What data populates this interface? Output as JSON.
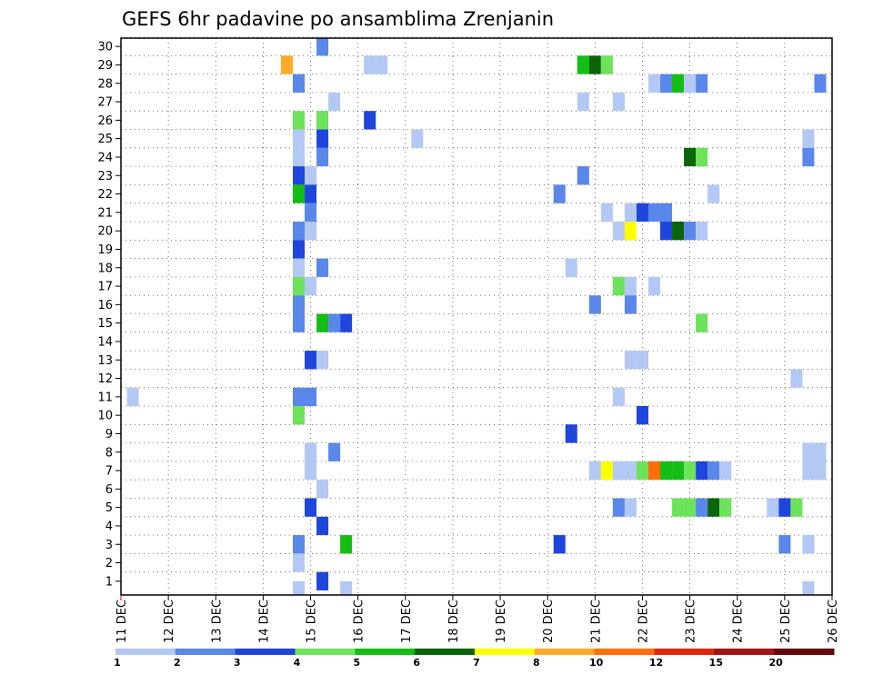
{
  "chart_data": {
    "type": "heatmap",
    "title": "GEFS 6hr padavine po ansamblima Zrenjanin",
    "xlabel": "",
    "ylabel": "",
    "x_ticks": [
      "11 DEC",
      "12 DEC",
      "13 DEC",
      "14 DEC",
      "15 DEC",
      "16 DEC",
      "17 DEC",
      "18 DEC",
      "19 DEC",
      "20 DEC",
      "21 DEC",
      "22 DEC",
      "23 DEC",
      "24 DEC",
      "25 DEC",
      "26 DEC"
    ],
    "y_ticks": [
      1,
      2,
      3,
      4,
      5,
      6,
      7,
      8,
      9,
      10,
      11,
      12,
      13,
      14,
      15,
      16,
      17,
      18,
      19,
      20,
      21,
      22,
      23,
      24,
      25,
      26,
      27,
      28,
      29,
      30
    ],
    "xlim": [
      0,
      15
    ],
    "ylim": [
      0.3,
      30
    ],
    "step": 0.25,
    "grid": true,
    "colorbar": {
      "colors": [
        "#b4c8f5",
        "#5a87ea",
        "#1e46dc",
        "#6ce35a",
        "#14be14",
        "#0a640a",
        "#ffff00",
        "#ffaa28",
        "#ff6e0a",
        "#dc280a",
        "#a01414",
        "#640a0a"
      ],
      "labels": [
        "1",
        "2",
        "3",
        "4",
        "5",
        "6",
        "7",
        "8",
        "10",
        "12",
        "15",
        "20"
      ]
    },
    "cells": [
      [
        0.25,
        11,
        0
      ],
      [
        3.5,
        29,
        7
      ],
      [
        3.75,
        10,
        0
      ],
      [
        3.75,
        10,
        3
      ],
      [
        3.75,
        28,
        1
      ],
      [
        3.75,
        26,
        3
      ],
      [
        3.75,
        25,
        0
      ],
      [
        3.75,
        24,
        0
      ],
      [
        3.75,
        23,
        2
      ],
      [
        3.75,
        22,
        4
      ],
      [
        3.75,
        20,
        1
      ],
      [
        3.75,
        19,
        2
      ],
      [
        3.75,
        18,
        0
      ],
      [
        3.75,
        17,
        3
      ],
      [
        3.75,
        16,
        1
      ],
      [
        3.75,
        15,
        1
      ],
      [
        3.75,
        11,
        1
      ],
      [
        3.75,
        10,
        3
      ],
      [
        3.75,
        3,
        1
      ],
      [
        3.75,
        2,
        0
      ],
      [
        3.75,
        0.5,
        0
      ],
      [
        4.0,
        23,
        0
      ],
      [
        4.0,
        22,
        2
      ],
      [
        4.0,
        21,
        1
      ],
      [
        4.0,
        20,
        0
      ],
      [
        4.0,
        17,
        0
      ],
      [
        4.0,
        13,
        2
      ],
      [
        4.0,
        11,
        1
      ],
      [
        4.0,
        8,
        0
      ],
      [
        4.0,
        7,
        0
      ],
      [
        4.0,
        5,
        2
      ],
      [
        4.25,
        30,
        1
      ],
      [
        4.25,
        26,
        3
      ],
      [
        4.25,
        25,
        2
      ],
      [
        4.25,
        24,
        1
      ],
      [
        4.25,
        18,
        1
      ],
      [
        4.25,
        15,
        4
      ],
      [
        4.25,
        13,
        0
      ],
      [
        4.25,
        6,
        0
      ],
      [
        4.25,
        4,
        2
      ],
      [
        4.25,
        1,
        2
      ],
      [
        4.5,
        27,
        0
      ],
      [
        4.5,
        15,
        1
      ],
      [
        4.5,
        8,
        1
      ],
      [
        4.75,
        15,
        2
      ],
      [
        4.75,
        3,
        4
      ],
      [
        4.75,
        0.5,
        0
      ],
      [
        5.25,
        29,
        0
      ],
      [
        5.5,
        29,
        0
      ],
      [
        5.25,
        26,
        2
      ],
      [
        6.25,
        25,
        0
      ],
      [
        9.25,
        22,
        1
      ],
      [
        9.25,
        3,
        2
      ],
      [
        9.5,
        18,
        0
      ],
      [
        9.5,
        9,
        2
      ],
      [
        9.75,
        29,
        4
      ],
      [
        9.75,
        27,
        0
      ],
      [
        9.75,
        23,
        1
      ],
      [
        10.0,
        29,
        5
      ],
      [
        10.0,
        16,
        1
      ],
      [
        10.0,
        7,
        0
      ],
      [
        10.25,
        29,
        3
      ],
      [
        10.25,
        21,
        0
      ],
      [
        10.25,
        7,
        6
      ],
      [
        10.5,
        27,
        0
      ],
      [
        10.5,
        20,
        0
      ],
      [
        10.5,
        17,
        3
      ],
      [
        10.5,
        11,
        0
      ],
      [
        10.5,
        7,
        0
      ],
      [
        10.5,
        5,
        1
      ],
      [
        10.75,
        21,
        0
      ],
      [
        10.75,
        20,
        6
      ],
      [
        10.75,
        17,
        0
      ],
      [
        10.75,
        16,
        1
      ],
      [
        10.75,
        13,
        0
      ],
      [
        10.75,
        7,
        0
      ],
      [
        10.75,
        5,
        0
      ],
      [
        11.0,
        21,
        2
      ],
      [
        11.0,
        13,
        0
      ],
      [
        11.0,
        10,
        2
      ],
      [
        11.0,
        7,
        3
      ],
      [
        11.25,
        28,
        0
      ],
      [
        11.25,
        21,
        1
      ],
      [
        11.25,
        17,
        0
      ],
      [
        11.25,
        7,
        8
      ],
      [
        11.5,
        28,
        1
      ],
      [
        11.5,
        21,
        1
      ],
      [
        11.5,
        20,
        2
      ],
      [
        11.5,
        7,
        4
      ],
      [
        11.75,
        28,
        4
      ],
      [
        11.75,
        20,
        5
      ],
      [
        11.75,
        7,
        4
      ],
      [
        11.75,
        5,
        3
      ],
      [
        12.0,
        28,
        0
      ],
      [
        12.0,
        24,
        5
      ],
      [
        12.0,
        20,
        1
      ],
      [
        12.0,
        7,
        3
      ],
      [
        12.0,
        5,
        3
      ],
      [
        12.25,
        28,
        1
      ],
      [
        12.25,
        24,
        3
      ],
      [
        12.25,
        20,
        0
      ],
      [
        12.25,
        15,
        3
      ],
      [
        12.25,
        7,
        2
      ],
      [
        12.25,
        5,
        1
      ],
      [
        12.5,
        22,
        0
      ],
      [
        12.5,
        7,
        1
      ],
      [
        12.5,
        5,
        5
      ],
      [
        12.75,
        7,
        0
      ],
      [
        12.75,
        5,
        3
      ],
      [
        13.75,
        5,
        0
      ],
      [
        14.0,
        5,
        2
      ],
      [
        14.0,
        3,
        1
      ],
      [
        14.25,
        12,
        0
      ],
      [
        14.25,
        5,
        3
      ],
      [
        14.5,
        25,
        0
      ],
      [
        14.5,
        24,
        1
      ],
      [
        14.5,
        8,
        0
      ],
      [
        14.5,
        7,
        0
      ],
      [
        14.5,
        3,
        0
      ],
      [
        14.5,
        0.5,
        0
      ],
      [
        14.75,
        28,
        1
      ],
      [
        14.75,
        8,
        0
      ],
      [
        14.75,
        7,
        0
      ]
    ]
  }
}
